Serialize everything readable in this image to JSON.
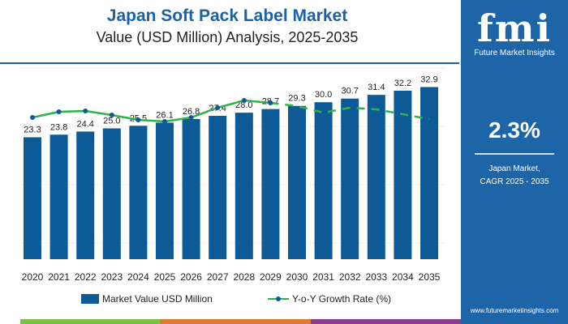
{
  "chart_data": {
    "type": "bar",
    "title": "Japan Soft Pack Label Market",
    "subtitle": "Value (USD Million) Analysis, 2025-2035",
    "categories": [
      "2020",
      "2021",
      "2022",
      "2023",
      "2024",
      "2025",
      "2026",
      "2027",
      "2028",
      "2029",
      "2030",
      "2031",
      "2032",
      "2033",
      "2034",
      "2035"
    ],
    "series": [
      {
        "name": "Market Value USD Million",
        "type": "bar",
        "color": "#0e5a96",
        "values": [
          23.3,
          23.8,
          24.4,
          25.0,
          25.5,
          26.1,
          26.8,
          27.4,
          28.0,
          28.7,
          29.3,
          30.0,
          30.7,
          31.4,
          32.2,
          32.9
        ]
      },
      {
        "name": "Y-o-Y Growth Rate (%)",
        "type": "line",
        "color": "#2db34a",
        "marker_color": "#0e5a96",
        "values": [
          2.1,
          2.24,
          2.26,
          2.16,
          2.04,
          2.0,
          2.1,
          2.34,
          2.52,
          2.46,
          2.38,
          2.22,
          2.34,
          2.3,
          2.18,
          2.06
        ],
        "dashed_from": "2029"
      }
    ],
    "grid": true,
    "legend": "bottom"
  },
  "panel": {
    "logo_text": "fmi",
    "brand": "Future Market Insights",
    "cagr": "2.3%",
    "desc_line1": "Japan Market,",
    "desc_line2": "CAGR 2025 - 2035",
    "url": "www.futuremarketinsights.com"
  },
  "colors": {
    "brand_blue": "#1e65a8",
    "strip": [
      "#7cc242",
      "#e07a3a",
      "#8b3d8f"
    ]
  }
}
